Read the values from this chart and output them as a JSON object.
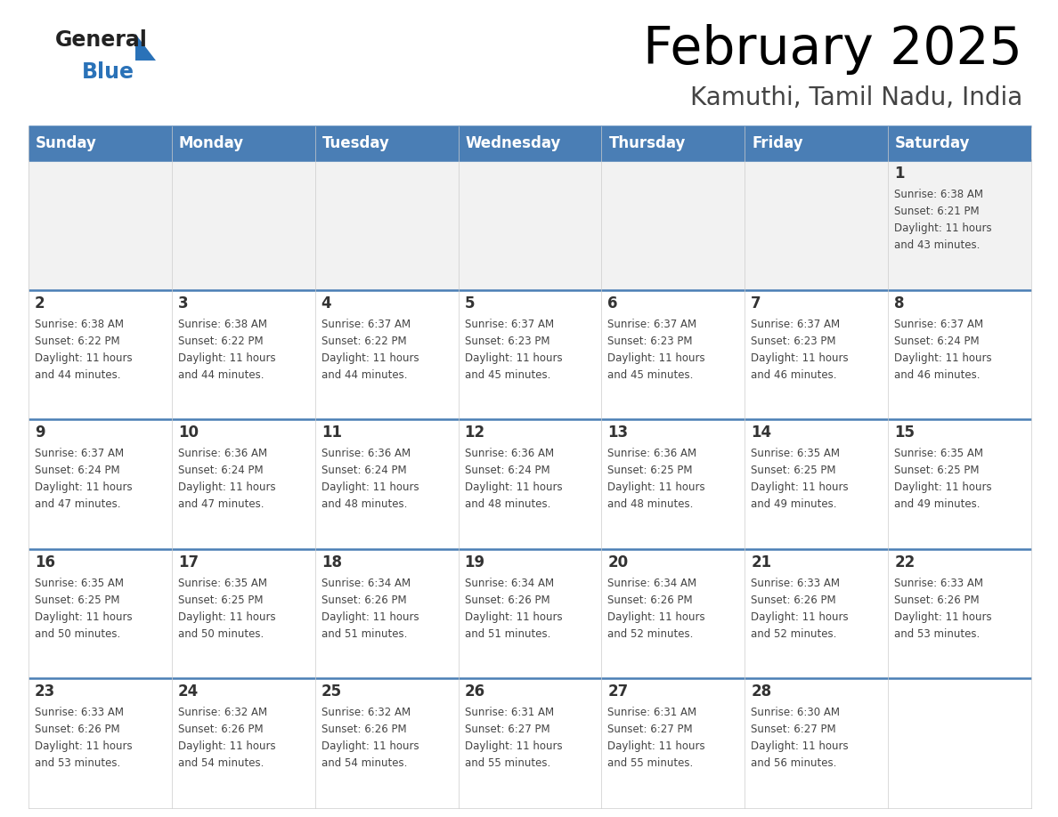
{
  "title": "February 2025",
  "subtitle": "Kamuthi, Tamil Nadu, India",
  "days_of_week": [
    "Sunday",
    "Monday",
    "Tuesday",
    "Wednesday",
    "Thursday",
    "Friday",
    "Saturday"
  ],
  "header_bg": "#4a7eb5",
  "header_text": "#ffffff",
  "row_bg_week1": "#f2f2f2",
  "row_bg_other": "#ffffff",
  "border_color": "#4a7eb5",
  "title_color": "#000000",
  "subtitle_color": "#444444",
  "day_num_color": "#333333",
  "info_color": "#444444",
  "logo_general_color": "#222222",
  "logo_blue_color": "#2a72b8",
  "logo_triangle_color": "#2a72b8",
  "calendar_data": [
    {
      "day": 1,
      "col": 6,
      "row": 0,
      "sunrise": "6:38 AM",
      "sunset": "6:21 PM",
      "daylight": "11 hours and 43 minutes"
    },
    {
      "day": 2,
      "col": 0,
      "row": 1,
      "sunrise": "6:38 AM",
      "sunset": "6:22 PM",
      "daylight": "11 hours and 44 minutes"
    },
    {
      "day": 3,
      "col": 1,
      "row": 1,
      "sunrise": "6:38 AM",
      "sunset": "6:22 PM",
      "daylight": "11 hours and 44 minutes"
    },
    {
      "day": 4,
      "col": 2,
      "row": 1,
      "sunrise": "6:37 AM",
      "sunset": "6:22 PM",
      "daylight": "11 hours and 44 minutes"
    },
    {
      "day": 5,
      "col": 3,
      "row": 1,
      "sunrise": "6:37 AM",
      "sunset": "6:23 PM",
      "daylight": "11 hours and 45 minutes"
    },
    {
      "day": 6,
      "col": 4,
      "row": 1,
      "sunrise": "6:37 AM",
      "sunset": "6:23 PM",
      "daylight": "11 hours and 45 minutes"
    },
    {
      "day": 7,
      "col": 5,
      "row": 1,
      "sunrise": "6:37 AM",
      "sunset": "6:23 PM",
      "daylight": "11 hours and 46 minutes"
    },
    {
      "day": 8,
      "col": 6,
      "row": 1,
      "sunrise": "6:37 AM",
      "sunset": "6:24 PM",
      "daylight": "11 hours and 46 minutes"
    },
    {
      "day": 9,
      "col": 0,
      "row": 2,
      "sunrise": "6:37 AM",
      "sunset": "6:24 PM",
      "daylight": "11 hours and 47 minutes"
    },
    {
      "day": 10,
      "col": 1,
      "row": 2,
      "sunrise": "6:36 AM",
      "sunset": "6:24 PM",
      "daylight": "11 hours and 47 minutes"
    },
    {
      "day": 11,
      "col": 2,
      "row": 2,
      "sunrise": "6:36 AM",
      "sunset": "6:24 PM",
      "daylight": "11 hours and 48 minutes"
    },
    {
      "day": 12,
      "col": 3,
      "row": 2,
      "sunrise": "6:36 AM",
      "sunset": "6:24 PM",
      "daylight": "11 hours and 48 minutes"
    },
    {
      "day": 13,
      "col": 4,
      "row": 2,
      "sunrise": "6:36 AM",
      "sunset": "6:25 PM",
      "daylight": "11 hours and 48 minutes"
    },
    {
      "day": 14,
      "col": 5,
      "row": 2,
      "sunrise": "6:35 AM",
      "sunset": "6:25 PM",
      "daylight": "11 hours and 49 minutes"
    },
    {
      "day": 15,
      "col": 6,
      "row": 2,
      "sunrise": "6:35 AM",
      "sunset": "6:25 PM",
      "daylight": "11 hours and 49 minutes"
    },
    {
      "day": 16,
      "col": 0,
      "row": 3,
      "sunrise": "6:35 AM",
      "sunset": "6:25 PM",
      "daylight": "11 hours and 50 minutes"
    },
    {
      "day": 17,
      "col": 1,
      "row": 3,
      "sunrise": "6:35 AM",
      "sunset": "6:25 PM",
      "daylight": "11 hours and 50 minutes"
    },
    {
      "day": 18,
      "col": 2,
      "row": 3,
      "sunrise": "6:34 AM",
      "sunset": "6:26 PM",
      "daylight": "11 hours and 51 minutes"
    },
    {
      "day": 19,
      "col": 3,
      "row": 3,
      "sunrise": "6:34 AM",
      "sunset": "6:26 PM",
      "daylight": "11 hours and 51 minutes"
    },
    {
      "day": 20,
      "col": 4,
      "row": 3,
      "sunrise": "6:34 AM",
      "sunset": "6:26 PM",
      "daylight": "11 hours and 52 minutes"
    },
    {
      "day": 21,
      "col": 5,
      "row": 3,
      "sunrise": "6:33 AM",
      "sunset": "6:26 PM",
      "daylight": "11 hours and 52 minutes"
    },
    {
      "day": 22,
      "col": 6,
      "row": 3,
      "sunrise": "6:33 AM",
      "sunset": "6:26 PM",
      "daylight": "11 hours and 53 minutes"
    },
    {
      "day": 23,
      "col": 0,
      "row": 4,
      "sunrise": "6:33 AM",
      "sunset": "6:26 PM",
      "daylight": "11 hours and 53 minutes"
    },
    {
      "day": 24,
      "col": 1,
      "row": 4,
      "sunrise": "6:32 AM",
      "sunset": "6:26 PM",
      "daylight": "11 hours and 54 minutes"
    },
    {
      "day": 25,
      "col": 2,
      "row": 4,
      "sunrise": "6:32 AM",
      "sunset": "6:26 PM",
      "daylight": "11 hours and 54 minutes"
    },
    {
      "day": 26,
      "col": 3,
      "row": 4,
      "sunrise": "6:31 AM",
      "sunset": "6:27 PM",
      "daylight": "11 hours and 55 minutes"
    },
    {
      "day": 27,
      "col": 4,
      "row": 4,
      "sunrise": "6:31 AM",
      "sunset": "6:27 PM",
      "daylight": "11 hours and 55 minutes"
    },
    {
      "day": 28,
      "col": 5,
      "row": 4,
      "sunrise": "6:30 AM",
      "sunset": "6:27 PM",
      "daylight": "11 hours and 56 minutes"
    }
  ]
}
